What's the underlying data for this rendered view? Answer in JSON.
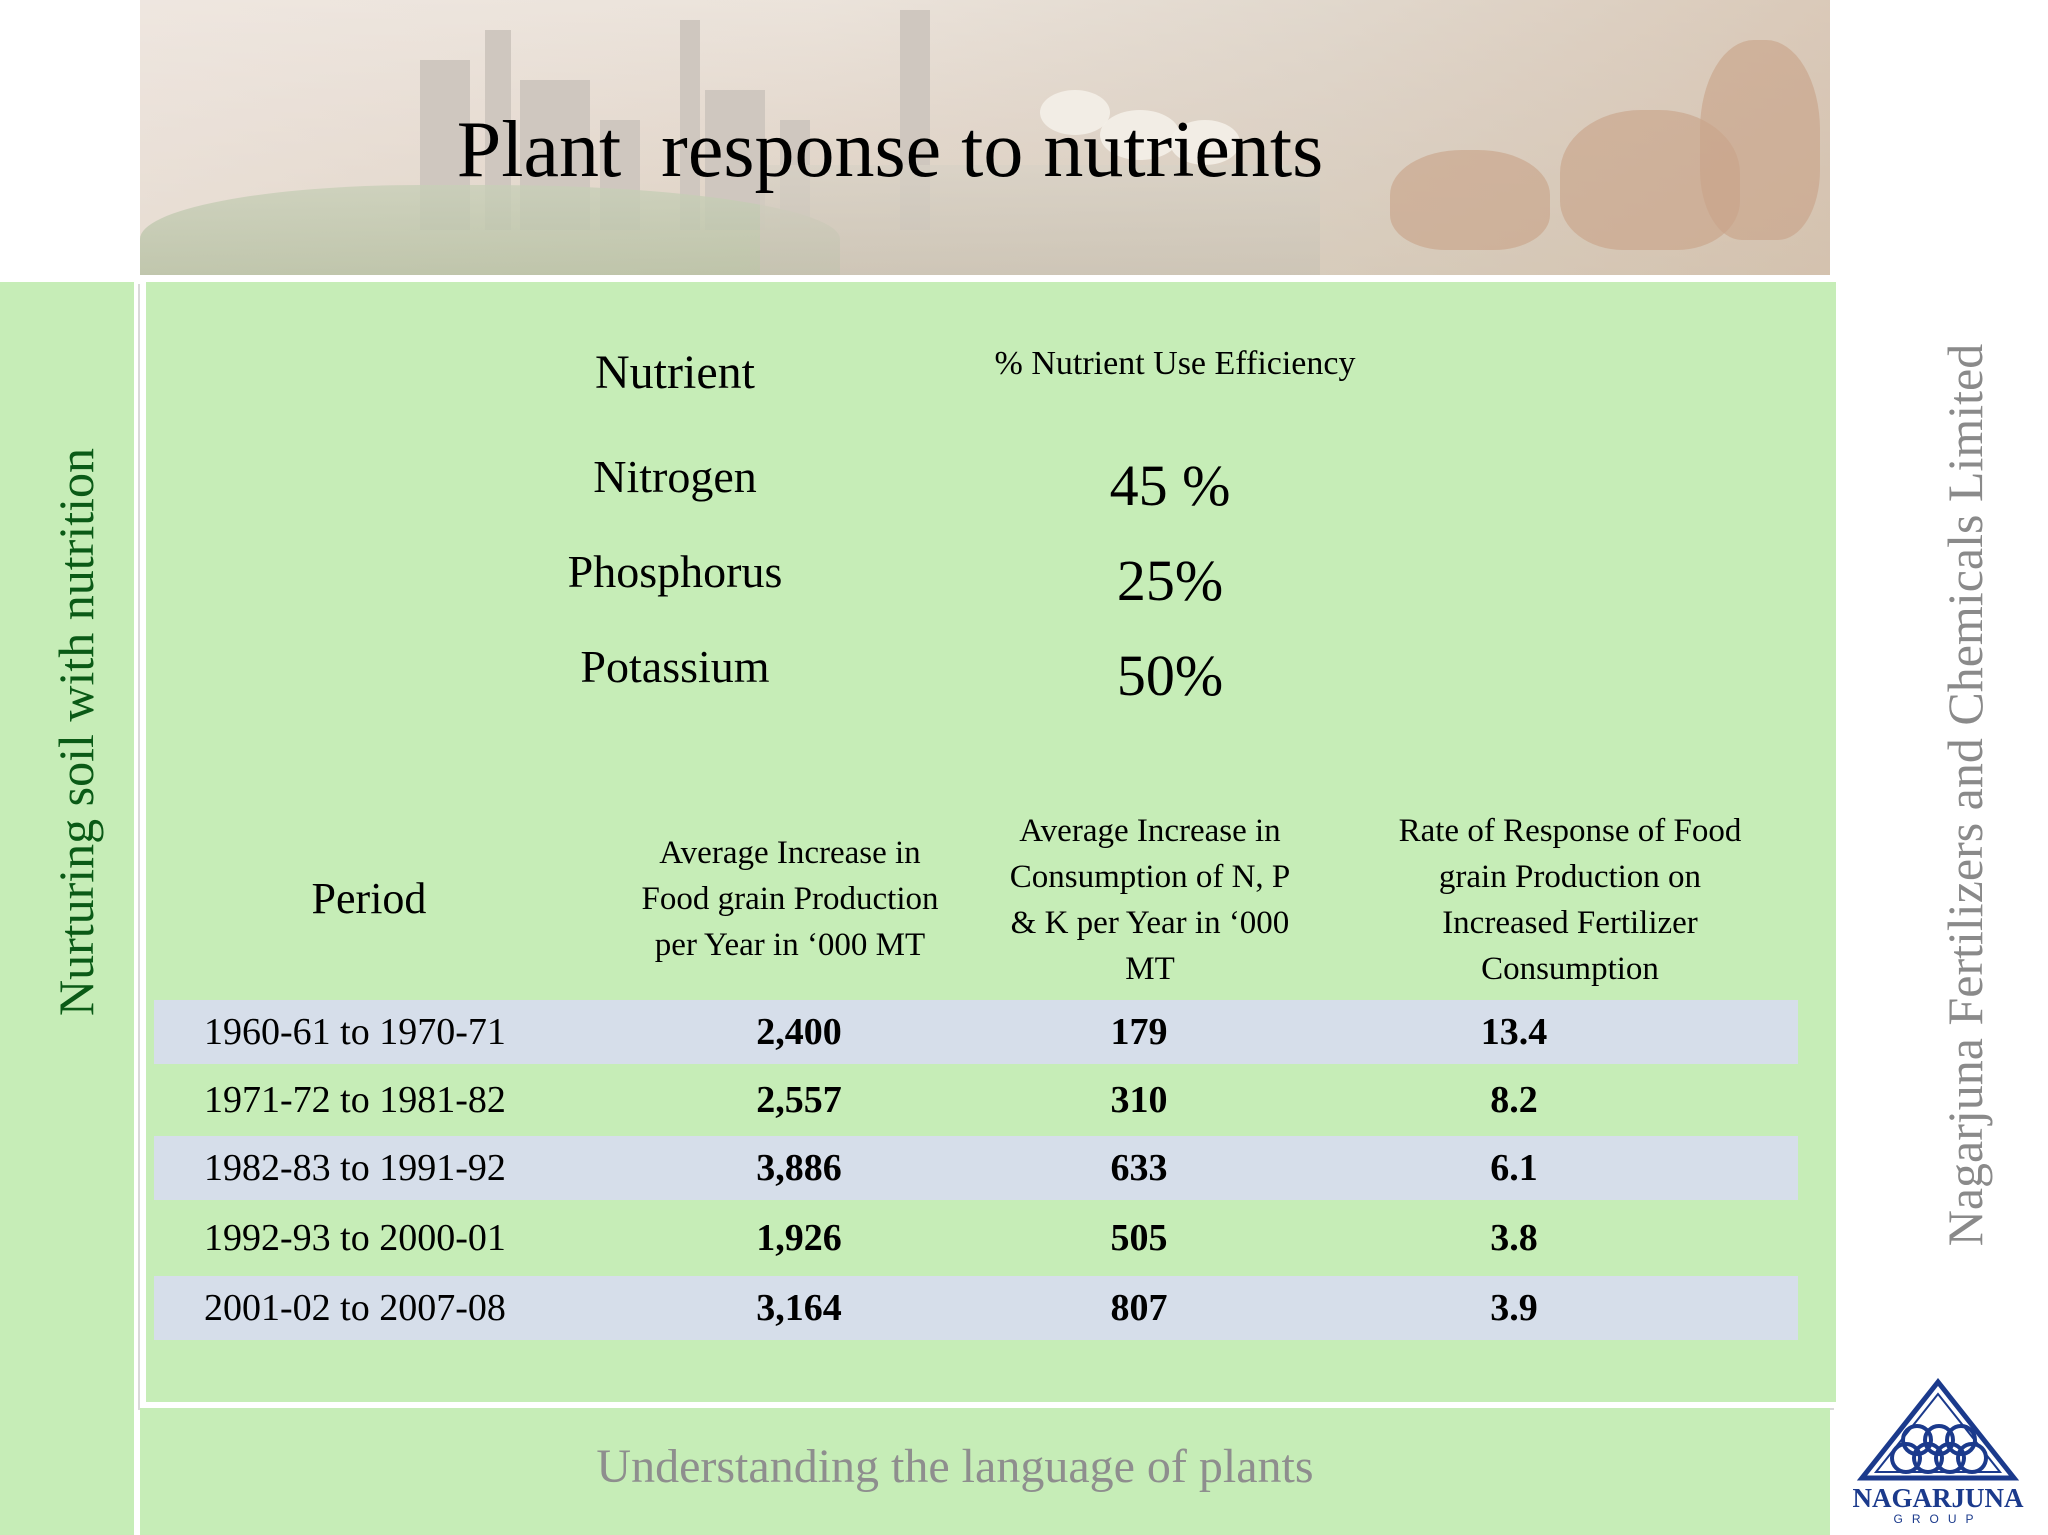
{
  "slide": {
    "title": "Plant  response to nutrients",
    "side_left_text": "Nurturing soil with nutrition",
    "side_right_text": "Nagarjuna Fertilizers and Chemicals Limited",
    "tagline": "Understanding the language of plants"
  },
  "nutrients": {
    "header_name": "Nutrient",
    "header_value": "% Nutrient Use Efficiency",
    "rows": [
      {
        "name": "Nitrogen",
        "value": "45 %"
      },
      {
        "name": "Phosphorus",
        "value": "25%"
      },
      {
        "name": "Potassium",
        "value": "50%"
      }
    ]
  },
  "table": {
    "headers": {
      "period": "Period",
      "col2": [
        "Average Increase in",
        "Food grain Production",
        "per Year in ‘000 MT"
      ],
      "col3": [
        "Average Increase in",
        "Consumption of N, P",
        "& K per Year in ‘000",
        "MT"
      ],
      "col4": [
        "Rate of Response of Food",
        "grain Production on",
        "Increased Fertilizer",
        "Consumption"
      ]
    },
    "rows": [
      {
        "period": "1960-61 to 1970-71",
        "production": "2,400",
        "consumption": "179",
        "response": "13.4"
      },
      {
        "period": "1971-72 to 1981-82",
        "production": "2,557",
        "consumption": "310",
        "response": "8.2"
      },
      {
        "period": "1982-83 to 1991-92",
        "production": "3,886",
        "consumption": "633",
        "response": "6.1"
      },
      {
        "period": "1992-93 to 2000-01",
        "production": "1,926",
        "consumption": "505",
        "response": "3.8"
      },
      {
        "period": "2001-02 to 2007-08",
        "production": "3,164",
        "consumption": "807",
        "response": "3.9"
      }
    ]
  },
  "logo": {
    "word": "NAGARJUNA",
    "sub": "GROUP",
    "color": "#1b3a8c"
  },
  "colors": {
    "panel_green": "#c6edb7",
    "row_shade": "#d6deea",
    "side_left_text": "#0a5a16",
    "side_right_text": "#8a8a8a"
  }
}
